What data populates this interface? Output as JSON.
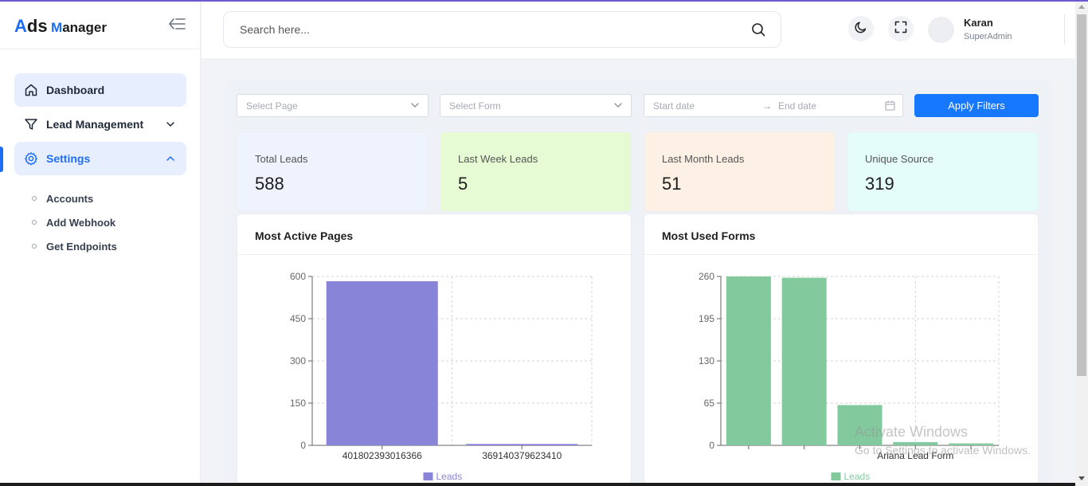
{
  "brand": {
    "letter_a": "A",
    "ds": "ds",
    "letter_m": "M",
    "anager": "anager"
  },
  "sidebar": {
    "items": [
      {
        "label": "Dashboard"
      },
      {
        "label": "Lead Management"
      },
      {
        "label": "Settings"
      }
    ],
    "settings_sub": [
      {
        "label": "Accounts"
      },
      {
        "label": "Add Webhook"
      },
      {
        "label": "Get Endpoints"
      }
    ]
  },
  "header": {
    "search_placeholder": "Search here...",
    "user_name": "Karan",
    "user_role": "SuperAdmin"
  },
  "filters": {
    "page_placeholder": "Select Page",
    "form_placeholder": "Select Form",
    "start_date": "Start date",
    "end_date": "End date",
    "arrow": "→",
    "apply_label": "Apply Filters"
  },
  "stats": [
    {
      "label": "Total Leads",
      "value": "588",
      "bg": "#eef3fd"
    },
    {
      "label": "Last Week Leads",
      "value": "5",
      "bg": "#e6fbd3"
    },
    {
      "label": "Last Month Leads",
      "value": "51",
      "bg": "#fdf1e6"
    },
    {
      "label": "Unique Source",
      "value": "319",
      "bg": "#e4fcfa"
    }
  ],
  "cards": {
    "pages_title": "Most Active Pages",
    "forms_title": "Most Used Forms"
  },
  "chart_data": [
    {
      "type": "bar",
      "title": "Most Active Pages",
      "categories": [
        "401802393016366",
        "369140379623410"
      ],
      "series": [
        {
          "name": "Leads",
          "values": [
            583,
            5
          ]
        }
      ],
      "ylim": [
        0,
        600
      ],
      "yticks": [
        0,
        150,
        300,
        450,
        600
      ],
      "color": "#8884d8",
      "grid": true,
      "legend": "bottom"
    },
    {
      "type": "bar",
      "title": "Most Used Forms",
      "categories": [
        "",
        "",
        "",
        "Ariana Lead Form",
        ""
      ],
      "series": [
        {
          "name": "Leads",
          "values": [
            260,
            258,
            62,
            5,
            3
          ]
        }
      ],
      "ylim": [
        0,
        260
      ],
      "yticks": [
        0,
        65,
        130,
        195,
        260
      ],
      "color": "#82ca9d",
      "grid": true,
      "legend": "bottom"
    }
  ],
  "watermark": {
    "line1": "Activate Windows",
    "line2": "Go to Settings to activate Windows."
  },
  "colors": {
    "accent": "#1e6ef5",
    "apply": "#1677ff"
  }
}
